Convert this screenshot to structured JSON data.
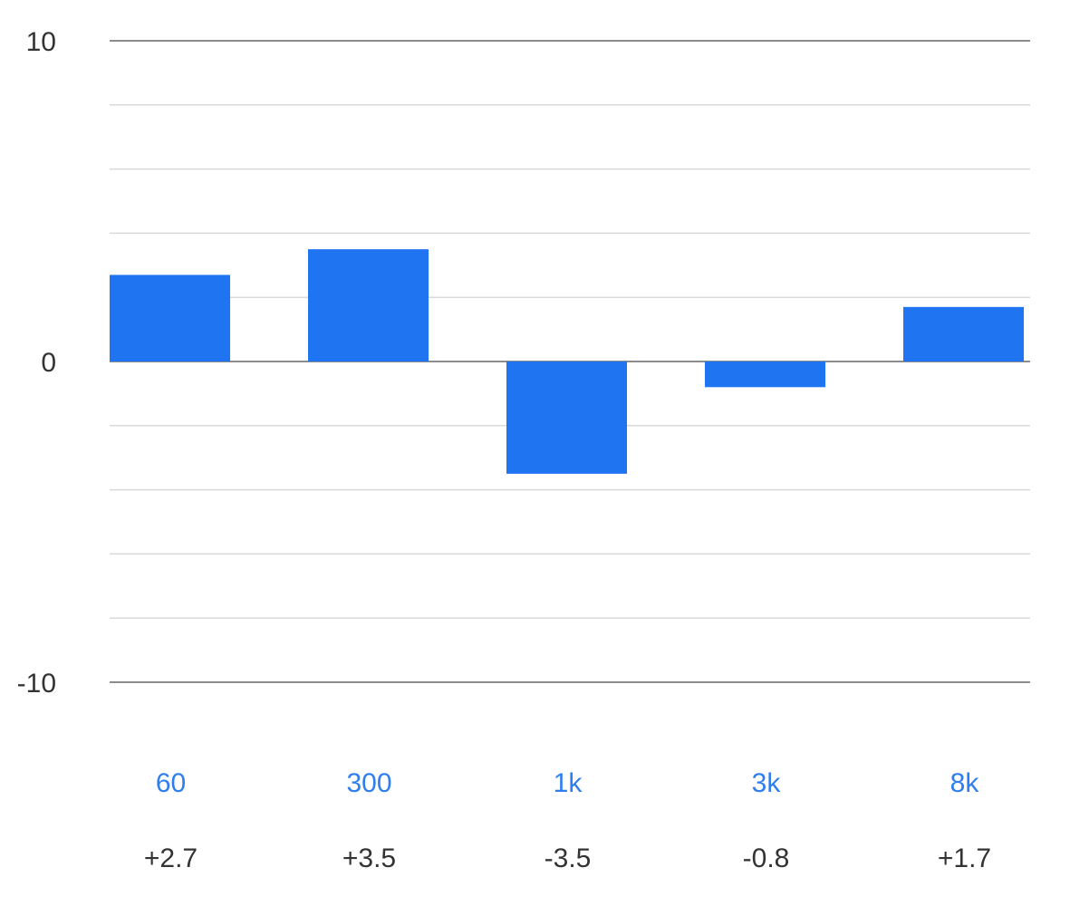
{
  "chart_data": {
    "type": "bar",
    "title": "",
    "xlabel": "",
    "ylabel": "",
    "ylim": [
      -10,
      10
    ],
    "yticks": [
      {
        "value": 10,
        "label": "10"
      },
      {
        "value": 0,
        "label": "0"
      },
      {
        "value": -10,
        "label": "-10"
      }
    ],
    "grid": true,
    "grid_step": 2,
    "legend": "none",
    "categories": [
      "60",
      "300",
      "1k",
      "3k",
      "8k"
    ],
    "values": [
      2.7,
      3.5,
      -3.5,
      -0.8,
      1.7
    ],
    "value_labels": [
      "+2.7",
      "+3.5",
      "-3.5",
      "-0.8",
      "+1.7"
    ],
    "colors": {
      "bar": "#1f74f2",
      "category_label": "#2f7ef0",
      "text": "#333333",
      "grid": "#d9d9d9",
      "axis": "#666666"
    }
  }
}
